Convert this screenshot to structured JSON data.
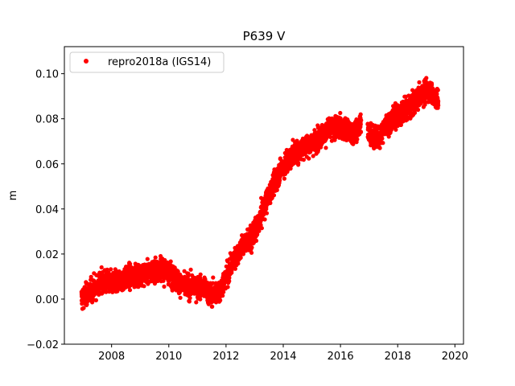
{
  "chart_data": {
    "type": "scatter",
    "title": "P639 V",
    "xlabel": "",
    "ylabel": "m",
    "xlim": [
      2006.35,
      2020.3
    ],
    "ylim": [
      -0.02,
      0.112
    ],
    "xticks": [
      2008,
      2010,
      2012,
      2014,
      2016,
      2018,
      2020
    ],
    "xtick_labels": [
      "2008",
      "2010",
      "2012",
      "2014",
      "2016",
      "2018",
      "2020"
    ],
    "yticks": [
      -0.02,
      0.0,
      0.02,
      0.04,
      0.06,
      0.08,
      0.1
    ],
    "ytick_labels": [
      "−0.02",
      "0.00",
      "0.02",
      "0.04",
      "0.06",
      "0.08",
      "0.10"
    ],
    "grid": false,
    "legend_position": "upper-left",
    "series": [
      {
        "name": "repro2018a (IGS14)",
        "color": "#ff0000",
        "marker": "circle",
        "trend": [
          [
            2006.95,
            0.0
          ],
          [
            2007.3,
            0.004
          ],
          [
            2007.7,
            0.008
          ],
          [
            2008.0,
            0.007
          ],
          [
            2008.3,
            0.008
          ],
          [
            2008.6,
            0.01
          ],
          [
            2009.0,
            0.011
          ],
          [
            2009.4,
            0.012
          ],
          [
            2009.7,
            0.014
          ],
          [
            2010.0,
            0.012
          ],
          [
            2010.3,
            0.008
          ],
          [
            2010.6,
            0.005
          ],
          [
            2010.9,
            0.006
          ],
          [
            2011.2,
            0.005
          ],
          [
            2011.5,
            0.002
          ],
          [
            2011.8,
            0.004
          ],
          [
            2012.0,
            0.01
          ],
          [
            2012.3,
            0.018
          ],
          [
            2012.6,
            0.024
          ],
          [
            2012.9,
            0.027
          ],
          [
            2013.1,
            0.032
          ],
          [
            2013.3,
            0.04
          ],
          [
            2013.6,
            0.049
          ],
          [
            2013.9,
            0.057
          ],
          [
            2014.2,
            0.062
          ],
          [
            2014.5,
            0.066
          ],
          [
            2014.8,
            0.068
          ],
          [
            2015.1,
            0.07
          ],
          [
            2015.4,
            0.073
          ],
          [
            2015.7,
            0.076
          ],
          [
            2016.0,
            0.076
          ],
          [
            2016.3,
            0.074
          ],
          [
            2016.6,
            0.075
          ],
          [
            2016.7,
            0.078
          ],
          [
            2017.0,
            0.074
          ],
          [
            2017.3,
            0.071
          ],
          [
            2017.6,
            0.077
          ],
          [
            2017.9,
            0.081
          ],
          [
            2018.2,
            0.083
          ],
          [
            2018.5,
            0.086
          ],
          [
            2018.8,
            0.091
          ],
          [
            2019.1,
            0.093
          ],
          [
            2019.4,
            0.088
          ]
        ],
        "gaps": [
          [
            2016.72,
            2016.95
          ]
        ],
        "noise_sd": 0.0045,
        "n_points": 4300,
        "x_range": [
          2006.95,
          2019.42
        ]
      }
    ]
  }
}
